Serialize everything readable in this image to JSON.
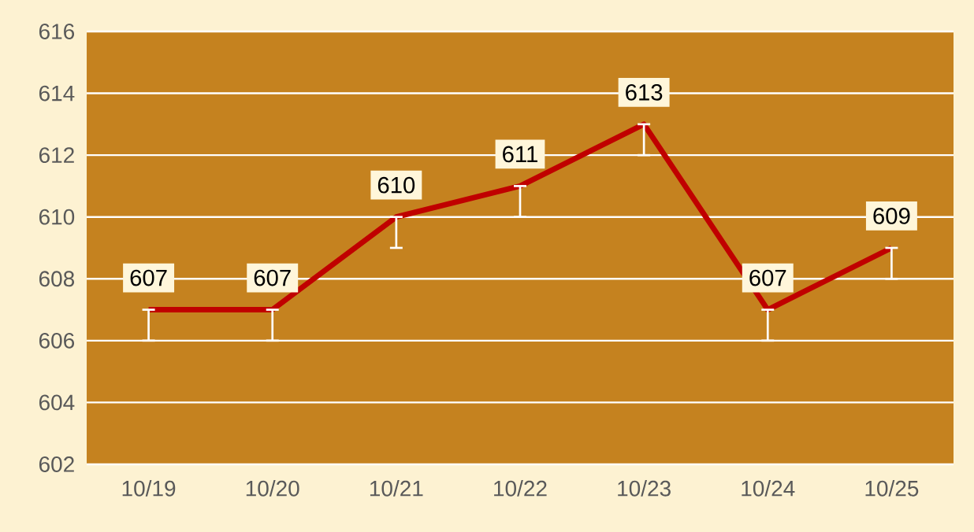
{
  "chart_data": {
    "type": "line",
    "categories": [
      "10/19",
      "10/20",
      "10/21",
      "10/22",
      "10/23",
      "10/24",
      "10/25"
    ],
    "series": [
      {
        "color": "#c00000",
        "values": [
          607,
          607,
          610,
          611,
          613,
          607,
          609
        ],
        "errors": [
          [
            606,
            607
          ],
          [
            606,
            607
          ],
          [
            609,
            610
          ],
          [
            610,
            611
          ],
          [
            612,
            613
          ],
          [
            606,
            607
          ],
          [
            608,
            609
          ]
        ]
      }
    ],
    "ylim": [
      602,
      616
    ],
    "yticks": [
      602,
      604,
      606,
      608,
      610,
      612,
      614,
      616
    ],
    "grid": "y",
    "data_labels": true,
    "marker": "none",
    "line_style": "solid"
  }
}
